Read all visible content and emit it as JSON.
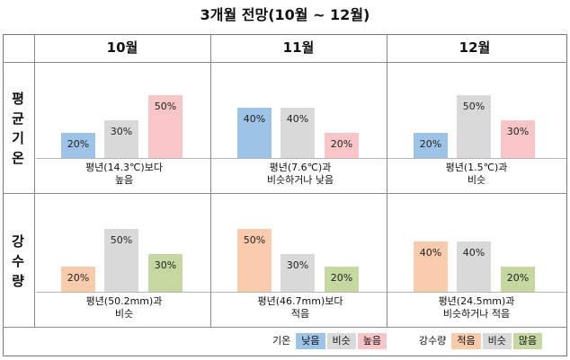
{
  "title": "3개월 전망(10월 ~ 12월)",
  "colors": {
    "low_temp": "#9dc3e6",
    "similar": "#d9d9d9",
    "high_temp": "#f8c5c8",
    "low_precip": "#f8cbad",
    "high_precip": "#c5d8a0"
  },
  "chart_data": {
    "type": "bar",
    "categories": [
      "10월",
      "11월",
      "12월"
    ],
    "rows": [
      {
        "label": [
          "평",
          "균",
          "기",
          "온"
        ],
        "series_names": [
          "낮음",
          "비슷",
          "높음"
        ],
        "cells": [
          {
            "values": [
              20,
              30,
              50
            ],
            "labels": [
              "20%",
              "30%",
              "50%"
            ],
            "caption": [
              "평년(14.3℃)보다",
              "높음"
            ]
          },
          {
            "values": [
              40,
              40,
              20
            ],
            "labels": [
              "40%",
              "40%",
              "20%"
            ],
            "caption": [
              "평년(7.6℃)과",
              "비슷하거나 낮음"
            ]
          },
          {
            "values": [
              20,
              50,
              30
            ],
            "labels": [
              "20%",
              "50%",
              "30%"
            ],
            "caption": [
              "평년(1.5℃)과",
              "비슷"
            ]
          }
        ]
      },
      {
        "label": [
          "강",
          "수",
          "량"
        ],
        "series_names": [
          "적음",
          "비슷",
          "많음"
        ],
        "cells": [
          {
            "values": [
              20,
              50,
              30
            ],
            "labels": [
              "20%",
              "50%",
              "30%"
            ],
            "caption": [
              "평년(50.2mm)과",
              "비슷"
            ]
          },
          {
            "values": [
              50,
              30,
              20
            ],
            "labels": [
              "50%",
              "30%",
              "20%"
            ],
            "caption": [
              "평년(46.7mm)보다",
              "적음"
            ]
          },
          {
            "values": [
              40,
              40,
              20
            ],
            "labels": [
              "40%",
              "40%",
              "20%"
            ],
            "caption": [
              "평년(24.5mm)과",
              "비슷하거나 적음"
            ]
          }
        ]
      }
    ]
  },
  "legend": {
    "temp_title": "기온",
    "temp_items": [
      "낮음",
      "비슷",
      "높음"
    ],
    "precip_title": "강수량",
    "precip_items": [
      "적음",
      "비슷",
      "많음"
    ]
  }
}
